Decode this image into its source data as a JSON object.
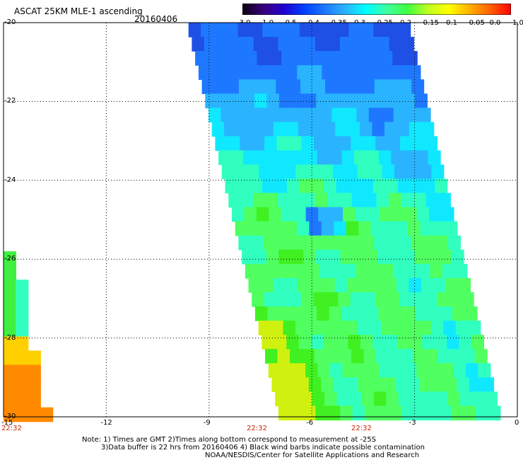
{
  "header": {
    "title": "ASCAT 25KM MLE-1 ascending",
    "date": "20160406"
  },
  "colorbar": {
    "labels": [
      "-3.0",
      "-1.0",
      "-0.5",
      "-0.4",
      "-0.35",
      "-0.3",
      "-0.25",
      "-0.2",
      "-0.15",
      "-0.1",
      "-0.05",
      "0.0",
      "1.0"
    ],
    "colors": [
      "#0a0010",
      "#3a007a",
      "#2000d0",
      "#0040ff",
      "#1e78ff",
      "#2ab4ff",
      "#00ffff",
      "#40ffa0",
      "#40ff40",
      "#c0ff20",
      "#ffff00",
      "#ffb000",
      "#ff6000",
      "#ff0000"
    ]
  },
  "axes": {
    "x_ticks": [
      "-15",
      "-12",
      "-9",
      "-6",
      "-3",
      "0"
    ],
    "y_ticks": [
      "-20",
      "-22",
      "-24",
      "-26",
      "-28",
      "-30"
    ]
  },
  "pass_times": [
    "22:32",
    "22:32",
    "22:32"
  ],
  "notes": [
    "Note: 1) Times are GMT 2)Times along bottom correspond to measurement at -25S",
    "3)Data buffer is 22 hrs from 20160406 4) Black wind barbs indicate possible contamination",
    "NOAA/NESDIS/Center for Satellite Applications and Research"
  ]
}
